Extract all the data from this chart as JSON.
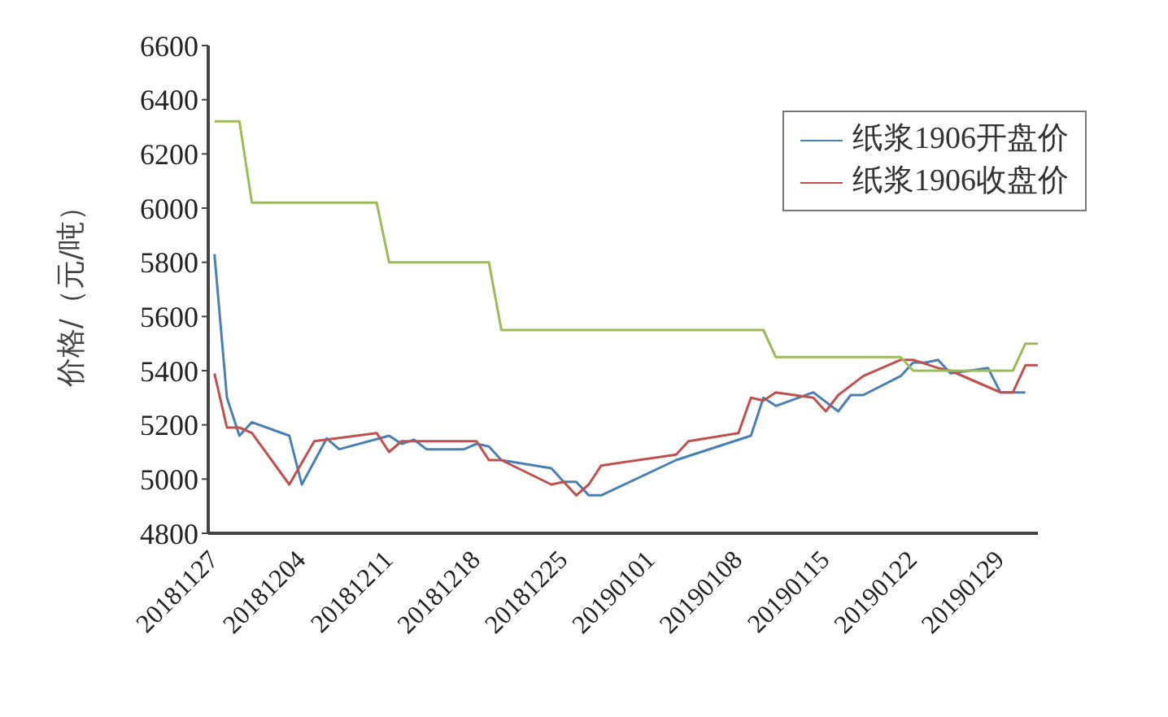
{
  "chart_data": {
    "type": "line",
    "ylabel": "价格/（元/吨）",
    "xlim": [
      "2018-11-26T12:00",
      "2019-02-01"
    ],
    "xticks": [
      {
        "value": "2018-11-27",
        "label": "20181127"
      },
      {
        "value": "2018-12-04",
        "label": "20181204"
      },
      {
        "value": "2018-12-11",
        "label": "20181211"
      },
      {
        "value": "2018-12-18",
        "label": "20181218"
      },
      {
        "value": "2018-12-25",
        "label": "20181225"
      },
      {
        "value": "2019-01-01",
        "label": "20190101"
      },
      {
        "value": "2019-01-08",
        "label": "20190108"
      },
      {
        "value": "2019-01-15",
        "label": "20190115"
      },
      {
        "value": "2019-01-22",
        "label": "20190122"
      },
      {
        "value": "2019-01-29",
        "label": "20190129"
      }
    ],
    "ylim": [
      4800,
      6600
    ],
    "yticks": [
      4800,
      5000,
      5200,
      5400,
      5600,
      5800,
      6000,
      6200,
      6400,
      6600
    ],
    "grid": false,
    "legend": "top right",
    "marker": "none",
    "series": [
      {
        "name": "纸浆1906开盘价",
        "color": "#4a7fb5",
        "x": [
          "2018-11-27",
          "2018-11-28",
          "2018-11-29",
          "2018-11-30",
          "2018-12-03",
          "2018-12-04",
          "2018-12-06",
          "2018-12-07",
          "2018-12-11",
          "2018-12-12",
          "2018-12-13",
          "2018-12-14",
          "2018-12-17",
          "2018-12-18",
          "2018-12-19",
          "2018-12-20",
          "2018-12-24",
          "2018-12-25",
          "2018-12-26",
          "2018-12-27",
          "2018-12-28",
          "2019-01-03",
          "2019-01-09",
          "2019-01-10",
          "2019-01-11",
          "2019-01-14",
          "2019-01-16",
          "2019-01-17",
          "2019-01-18",
          "2019-01-21",
          "2019-01-22",
          "2019-01-23",
          "2019-01-24",
          "2019-01-25",
          "2019-01-28",
          "2019-01-29",
          "2019-01-30",
          "2019-01-31"
        ],
        "values": [
          5830,
          5300,
          5160,
          5210,
          5160,
          4980,
          5150,
          5110,
          5160,
          5130,
          5145,
          5110,
          5110,
          5130,
          5120,
          5070,
          5040,
          4990,
          4990,
          4940,
          4940,
          5070,
          5160,
          5300,
          5270,
          5320,
          5250,
          5310,
          5310,
          5380,
          5430,
          5430,
          5440,
          5390,
          5410,
          5320,
          5320,
          5320
        ]
      },
      {
        "name": "纸浆1906收盘价",
        "color": "#c0504d",
        "x": [
          "2018-11-27",
          "2018-11-28",
          "2018-11-29",
          "2018-11-30",
          "2018-12-03",
          "2018-12-05",
          "2018-12-10",
          "2018-12-11",
          "2018-12-12",
          "2018-12-18",
          "2018-12-19",
          "2018-12-20",
          "2018-12-24",
          "2018-12-25",
          "2018-12-26",
          "2018-12-27",
          "2018-12-28",
          "2019-01-03",
          "2019-01-04",
          "2019-01-08",
          "2019-01-09",
          "2019-01-10",
          "2019-01-11",
          "2019-01-14",
          "2019-01-15",
          "2019-01-16",
          "2019-01-18",
          "2019-01-21",
          "2019-01-22",
          "2019-01-24",
          "2019-01-25",
          "2019-01-28",
          "2019-01-29",
          "2019-01-30",
          "2019-01-31",
          "2019-02-01"
        ],
        "values": [
          5390,
          5190,
          5190,
          5170,
          4980,
          5140,
          5170,
          5100,
          5140,
          5140,
          5070,
          5070,
          4980,
          4990,
          4940,
          4980,
          5050,
          5090,
          5140,
          5170,
          5300,
          5290,
          5320,
          5300,
          5250,
          5310,
          5380,
          5440,
          5440,
          5410,
          5400,
          5340,
          5320,
          5320,
          5420,
          5420
        ]
      },
      {
        "color": "#9bbb59",
        "x": [
          "2018-11-27",
          "2018-11-29",
          "2018-11-30",
          "2018-12-10",
          "2018-12-11",
          "2018-12-19",
          "2018-12-20",
          "2019-01-10",
          "2019-01-11",
          "2019-01-21",
          "2019-01-22",
          "2019-01-30",
          "2019-01-31",
          "2019-02-01"
        ],
        "values": [
          6320,
          6320,
          6020,
          6020,
          5800,
          5800,
          5550,
          5550,
          5450,
          5450,
          5400,
          5400,
          5500,
          5500
        ]
      }
    ]
  }
}
